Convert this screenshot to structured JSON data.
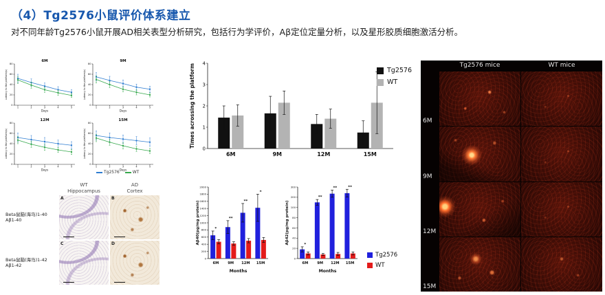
{
  "slide": {
    "title": "（4）Tg2576小鼠评价体系建立",
    "subtitle": "对不同年龄Tg2576小鼠开展AD相关表型分析研究，包括行为学评价，Aβ定位定量分析，以及星形胶质细胞激活分析。"
  },
  "chart_data": [
    {
      "id": "latency-6m",
      "type": "line",
      "title": "6M",
      "xlabel": "Days",
      "ylabel": "Latency to the platform(s)",
      "x": [
        1,
        2,
        3,
        4,
        5
      ],
      "ylim": [
        0,
        80
      ],
      "yticks": [
        0,
        20,
        40,
        60,
        80
      ],
      "series": [
        {
          "name": "Tg2576",
          "color": "#2e7dd1",
          "values": [
            52,
            44,
            37,
            30,
            25
          ],
          "err": [
            8,
            7,
            6,
            6,
            5
          ]
        },
        {
          "name": "WT",
          "color": "#35a84c",
          "values": [
            49,
            39,
            30,
            24,
            19
          ],
          "err": [
            7,
            6,
            5,
            5,
            4
          ]
        }
      ]
    },
    {
      "id": "latency-9m",
      "type": "line",
      "title": "9M",
      "xlabel": "Days",
      "ylabel": "Latency to the platform(s)",
      "x": [
        1,
        2,
        3,
        4,
        5
      ],
      "ylim": [
        0,
        80
      ],
      "yticks": [
        0,
        20,
        40,
        60,
        80
      ],
      "series": [
        {
          "name": "Tg2576",
          "color": "#2e7dd1",
          "values": [
            55,
            48,
            42,
            35,
            31
          ],
          "err": [
            8,
            8,
            7,
            6,
            6
          ]
        },
        {
          "name": "WT",
          "color": "#35a84c",
          "values": [
            50,
            40,
            31,
            25,
            20
          ],
          "err": [
            7,
            6,
            5,
            5,
            4
          ]
        }
      ]
    },
    {
      "id": "latency-12m",
      "type": "line",
      "title": "12M",
      "xlabel": "Days",
      "ylabel": "Latency to the platform(s)",
      "x": [
        1,
        2,
        3,
        4,
        5
      ],
      "ylim": [
        0,
        80
      ],
      "yticks": [
        0,
        20,
        40,
        60,
        80
      ],
      "series": [
        {
          "name": "Tg2576",
          "color": "#2e7dd1",
          "values": [
            52,
            48,
            44,
            40,
            37
          ],
          "err": [
            9,
            8,
            8,
            7,
            7
          ]
        },
        {
          "name": "WT",
          "color": "#35a84c",
          "values": [
            47,
            39,
            33,
            28,
            24
          ],
          "err": [
            7,
            6,
            6,
            5,
            5
          ]
        }
      ]
    },
    {
      "id": "latency-15m",
      "type": "line",
      "title": "15M",
      "xlabel": "Days",
      "ylabel": "Latency to the platform(s)",
      "x": [
        1,
        2,
        3,
        4,
        5
      ],
      "ylim": [
        0,
        80
      ],
      "yticks": [
        0,
        20,
        40,
        60,
        80
      ],
      "series": [
        {
          "name": "Tg2576",
          "color": "#2e7dd1",
          "values": [
            56,
            52,
            49,
            46,
            43
          ],
          "err": [
            9,
            9,
            8,
            8,
            8
          ]
        },
        {
          "name": "WT",
          "color": "#35a84c",
          "values": [
            51,
            43,
            36,
            30,
            26
          ],
          "err": [
            7,
            6,
            6,
            5,
            5
          ]
        }
      ]
    },
    {
      "id": "platform-crossings",
      "type": "bar",
      "ylabel": "Times acrossing the platform",
      "categories": [
        "6M",
        "9M",
        "12M",
        "15M"
      ],
      "yticks": [
        0,
        1,
        2,
        3,
        4
      ],
      "series": [
        {
          "name": "Tg2576",
          "color": "#111111",
          "values": [
            1.45,
            1.65,
            1.15,
            0.75
          ],
          "err": [
            0.55,
            0.8,
            0.45,
            0.55
          ]
        },
        {
          "name": "WT",
          "color": "#b3b3b3",
          "values": [
            1.55,
            2.15,
            1.4,
            2.15
          ],
          "err": [
            0.5,
            0.55,
            0.45,
            1.45
          ]
        }
      ]
    },
    {
      "id": "abeta40",
      "type": "bar",
      "ylabel": "Aβ40(pg/mg protein)",
      "xlabel": "Months",
      "categories": [
        "6M",
        "9M",
        "12M",
        "15M"
      ],
      "yticks": [
        0,
        200,
        400,
        600,
        800,
        1000,
        1200,
        1400,
        1600,
        1800,
        2000
      ],
      "series": [
        {
          "name": "Tg2576",
          "color": "#2020dd",
          "values": [
            650,
            880,
            1280,
            1420
          ],
          "err": [
            120,
            180,
            260,
            380
          ]
        },
        {
          "name": "WT",
          "color": "#e31b1b",
          "values": [
            470,
            420,
            500,
            520
          ],
          "err": [
            60,
            50,
            60,
            70
          ]
        }
      ],
      "sig": [
        "*",
        "**",
        "**",
        "*"
      ]
    },
    {
      "id": "abeta42",
      "type": "bar",
      "ylabel": "Aβ42(pg/mg protein)",
      "xlabel": "Months",
      "categories": [
        "6M",
        "9M",
        "12M",
        "15M"
      ],
      "yticks": [
        0,
        20,
        40,
        60,
        80,
        100,
        200,
        300
      ],
      "series": [
        {
          "name": "Tg2576",
          "color": "#2020dd",
          "values": [
            18,
            150,
            235,
            240
          ],
          "err": [
            5,
            28,
            35,
            38
          ]
        },
        {
          "name": "WT",
          "color": "#e31b1b",
          "values": [
            10,
            8,
            9,
            10
          ],
          "err": [
            3,
            2,
            3,
            3
          ]
        }
      ],
      "sig": [
        "*",
        "**",
        "**",
        "**"
      ]
    }
  ],
  "latency_legend": [
    {
      "label": "Tg2576",
      "color": "#2e7dd1"
    },
    {
      "label": "WT",
      "color": "#35a84c"
    }
  ],
  "platform_legend": [
    {
      "label": "Tg2576",
      "color": "#111111"
    },
    {
      "label": "WT",
      "color": "#b3b3b3"
    }
  ],
  "ab_legend": [
    {
      "label": "Tg2576",
      "color": "#2020dd"
    },
    {
      "label": "WT",
      "color": "#e31b1b"
    }
  ],
  "histology": {
    "col_headers": [
      {
        "top": "WT",
        "bottom": "Hippocampus"
      },
      {
        "top": "AD",
        "bottom": "Cortex"
      }
    ],
    "rows": [
      {
        "label_top": "Beta鼠脑(海马)1-40",
        "label_bottom": "Aβ1-40",
        "panels": [
          "A",
          "B"
        ]
      },
      {
        "label_top": "Beta鼠脑(海马)1-42",
        "label_bottom": "Aβ1-42",
        "panels": [
          "C",
          "D"
        ]
      }
    ]
  },
  "fluorescence": {
    "col_headers": [
      "Tg2576 mice",
      "WT mice"
    ],
    "row_labels": [
      "6M",
      "9M",
      "12M",
      "15M"
    ]
  }
}
